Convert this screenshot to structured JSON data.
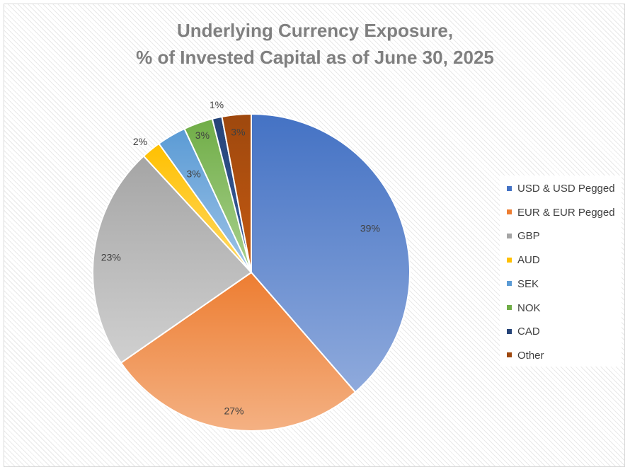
{
  "chart_data": {
    "type": "pie",
    "title_lines": [
      "Underlying Currency Exposure,",
      "% of Invested Capital as of June 30, 2025"
    ],
    "slices": [
      {
        "name": "USD & USD Pegged",
        "value": 39,
        "label": "39%",
        "color": "#4472c4",
        "color_light": "#8faadc"
      },
      {
        "name": "EUR & EUR Pegged",
        "value": 27,
        "label": "27%",
        "color": "#ed7d31",
        "color_light": "#f4b183"
      },
      {
        "name": "GBP",
        "value": 23,
        "label": "23%",
        "color": "#a5a5a5",
        "color_light": "#d0d0d0"
      },
      {
        "name": "AUD",
        "value": 2,
        "label": "2%",
        "color": "#ffc000",
        "color_light": "#ffd966"
      },
      {
        "name": "SEK",
        "value": 3,
        "label": "3%",
        "color": "#5b9bd5",
        "color_light": "#9dc3e6"
      },
      {
        "name": "NOK",
        "value": 3,
        "label": "3%",
        "color": "#70ad47",
        "color_light": "#a9d18e"
      },
      {
        "name": "CAD",
        "value": 1,
        "label": "1%",
        "color": "#264478",
        "color_light": "#3a5f9e"
      },
      {
        "name": "Other",
        "value": 3,
        "label": "3%",
        "color": "#9e480e",
        "color_light": "#c55a11"
      }
    ],
    "legend_position": "right"
  }
}
